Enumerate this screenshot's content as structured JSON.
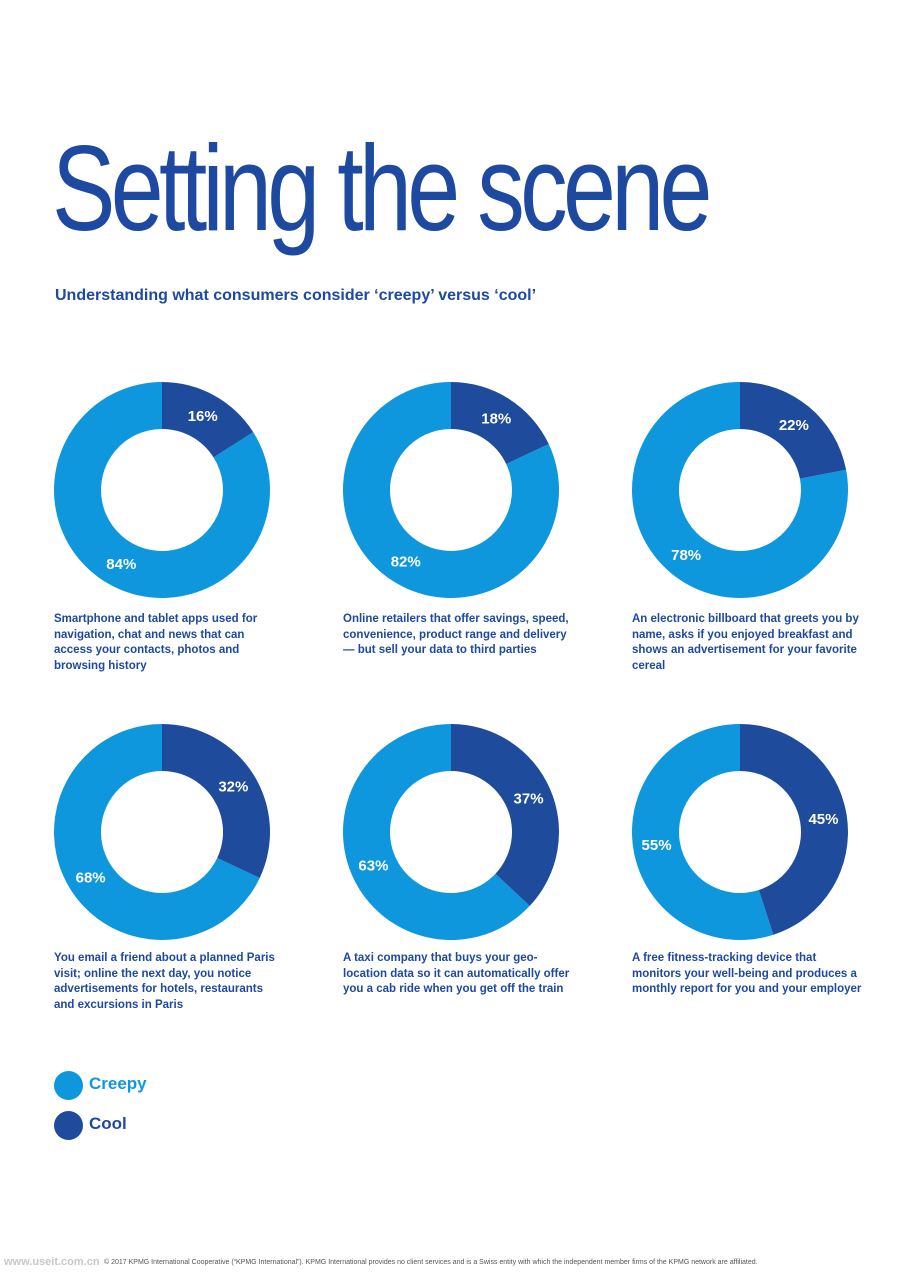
{
  "title": "Setting the scene",
  "subtitle": "Understanding what consumers consider ‘creepy’ versus ‘cool’",
  "colors": {
    "creepy": "#0f97dd",
    "cool": "#1e4b9b",
    "text": "#1e49a0"
  },
  "legend": [
    {
      "label": "Creepy",
      "color": "#0f97dd"
    },
    {
      "label": "Cool",
      "color": "#1e4b9b"
    }
  ],
  "footer": "© 2017 KPMG International Cooperative (“KPMG International”). KPMG International provides no client services and is a Swiss entity with which the independent member firms of the KPMG network are affiliated.",
  "watermark": "www.useit.com.cn",
  "chart_data": [
    {
      "type": "pie",
      "caption": "Smartphone and tablet apps used for navigation, chat and news that can access your contacts, photos and browsing history",
      "series": [
        {
          "name": "Cool",
          "value": 16,
          "label": "16%"
        },
        {
          "name": "Creepy",
          "value": 84,
          "label": "84%"
        }
      ]
    },
    {
      "type": "pie",
      "caption": "Online retailers that offer savings, speed, convenience, product range and delivery — but sell your data to third parties",
      "series": [
        {
          "name": "Cool",
          "value": 18,
          "label": "18%"
        },
        {
          "name": "Creepy",
          "value": 82,
          "label": "82%"
        }
      ]
    },
    {
      "type": "pie",
      "caption": "An electronic billboard that greets you by name, asks if you enjoyed breakfast and shows an advertisement for your favorite cereal",
      "series": [
        {
          "name": "Cool",
          "value": 22,
          "label": "22%"
        },
        {
          "name": "Creepy",
          "value": 78,
          "label": "78%"
        }
      ]
    },
    {
      "type": "pie",
      "caption": "You email a friend about a planned Paris visit; online the next day, you notice advertisements for hotels, restaurants and excursions in Paris",
      "series": [
        {
          "name": "Cool",
          "value": 32,
          "label": "32%"
        },
        {
          "name": "Creepy",
          "value": 68,
          "label": "68%"
        }
      ]
    },
    {
      "type": "pie",
      "caption": "A taxi company that buys your geo-location data so it can automatically offer you a cab ride when you get off the train",
      "series": [
        {
          "name": "Cool",
          "value": 37,
          "label": "37%"
        },
        {
          "name": "Creepy",
          "value": 63,
          "label": "63%"
        }
      ]
    },
    {
      "type": "pie",
      "caption": "A free fitness-tracking device that monitors your well-being and produces a monthly report for you and your employer",
      "series": [
        {
          "name": "Cool",
          "value": 45,
          "label": "45%"
        },
        {
          "name": "Creepy",
          "value": 55,
          "label": "55%"
        }
      ]
    }
  ]
}
